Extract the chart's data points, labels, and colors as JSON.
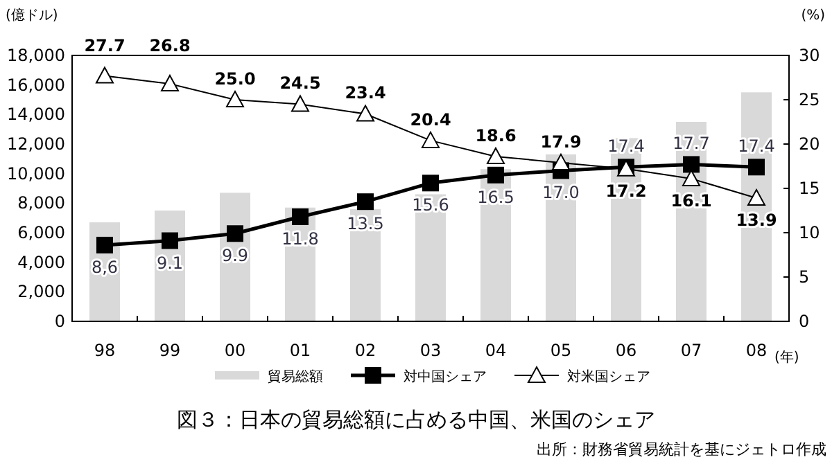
{
  "chart_data": {
    "type": "bar",
    "title": "図３：日本の貿易総額に占める中国、米国のシェア",
    "annotations": [
      "出所：財務省貿易統計を基にジェトロ作成"
    ],
    "xlabel": "(年)",
    "ylabel": "(億ドル)",
    "y2label": "(%)",
    "categories": [
      "98",
      "99",
      "00",
      "01",
      "02",
      "03",
      "04",
      "05",
      "06",
      "07",
      "08"
    ],
    "ylim": [
      0,
      18000
    ],
    "yticks": [
      {
        "value": 0,
        "label": "0"
      },
      {
        "value": 2000,
        "label": "2,000"
      },
      {
        "value": 4000,
        "label": "4,000"
      },
      {
        "value": 6000,
        "label": "6,000"
      },
      {
        "value": 8000,
        "label": "8,000"
      },
      {
        "value": 10000,
        "label": "10,000"
      },
      {
        "value": 12000,
        "label": "12,000"
      },
      {
        "value": 14000,
        "label": "14,000"
      },
      {
        "value": 16000,
        "label": "16,000"
      },
      {
        "value": 18000,
        "label": "18,000"
      }
    ],
    "y2lim": [
      0,
      30
    ],
    "y2ticks": [
      0,
      5,
      10,
      15,
      20,
      25,
      30
    ],
    "legend": "bottom",
    "series": [
      {
        "name": "貿易総額",
        "color": "#d9d9d9",
        "values": [
          6700,
          7500,
          8700,
          7700,
          7600,
          8600,
          10300,
          11300,
          12400,
          13500,
          15500
        ]
      },
      {
        "name": "対中国シェア",
        "type": "line",
        "axis": "y2",
        "color": "#000000",
        "marker": "square",
        "values": [
          8.6,
          9.1,
          9.9,
          11.8,
          13.5,
          15.6,
          16.5,
          17.0,
          17.4,
          17.7,
          17.4
        ],
        "value_labels": [
          "8,6",
          "9.1",
          "9.9",
          "11.8",
          "13.5",
          "15.6",
          "16.5",
          "17.0",
          "17.4",
          "17.7",
          "17.4"
        ]
      },
      {
        "name": "対米国シェア",
        "type": "line",
        "axis": "y2",
        "color": "#000000",
        "marker": "triangle",
        "values": [
          27.7,
          26.8,
          25.0,
          24.5,
          23.4,
          20.4,
          18.6,
          17.9,
          17.2,
          16.1,
          13.9
        ],
        "value_labels": [
          "27.7",
          "26.8",
          "25.0",
          "24.5",
          "23.4",
          "20.4",
          "18.6",
          "17.9",
          "17.2",
          "16.1",
          "13.9"
        ]
      }
    ]
  }
}
